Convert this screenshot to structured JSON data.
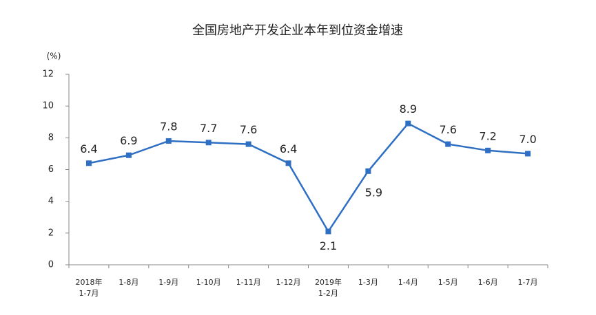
{
  "chart_data": {
    "type": "line",
    "title": "全国房地产开发企业本年到位资金增速",
    "y_unit": "(%)",
    "categories": [
      "2018年\n1-7月",
      "1-8月",
      "1-9月",
      "1-10月",
      "1-11月",
      "1-12月",
      "2019年\n1-2月",
      "1-3月",
      "1-4月",
      "1-5月",
      "1-6月",
      "1-7月"
    ],
    "values": [
      6.4,
      6.9,
      7.8,
      7.7,
      7.6,
      6.4,
      2.1,
      5.9,
      8.9,
      7.6,
      7.2,
      7.0
    ],
    "value_labels": [
      "6.4",
      "6.9",
      "7.8",
      "7.7",
      "7.6",
      "6.4",
      "2.1",
      "5.9",
      "8.9",
      "7.6",
      "7.2",
      "7.0"
    ],
    "color": "#2e6fc4",
    "ylim": [
      0,
      12
    ],
    "yticks": [
      0,
      2,
      4,
      6,
      8,
      10,
      12
    ],
    "grid": false
  }
}
